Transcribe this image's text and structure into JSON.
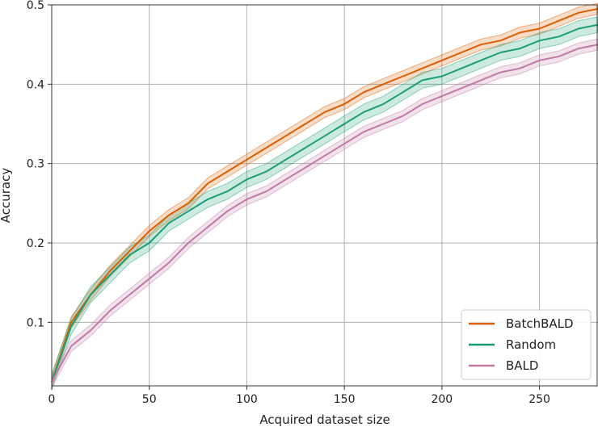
{
  "chart_data": {
    "type": "line",
    "title": "",
    "xlabel": "Acquired dataset size",
    "ylabel": "Accuracy",
    "xlim": [
      0,
      280
    ],
    "ylim": [
      0.02,
      0.5
    ],
    "xticks": [
      0,
      50,
      100,
      150,
      200,
      250
    ],
    "yticks": [
      0.1,
      0.2,
      0.3,
      0.4,
      0.5
    ],
    "xtick_labels": [
      "0",
      "50",
      "100",
      "150",
      "200",
      "250"
    ],
    "ytick_labels": [
      "0.1",
      "0.2",
      "0.3",
      "0.4",
      "0.5"
    ],
    "grid": true,
    "legend": "lower-right",
    "x": [
      0,
      10,
      20,
      30,
      40,
      50,
      60,
      70,
      80,
      90,
      100,
      110,
      120,
      130,
      140,
      150,
      160,
      170,
      180,
      190,
      200,
      210,
      220,
      230,
      240,
      250,
      260,
      270,
      280
    ],
    "series": [
      {
        "name": "BatchBALD",
        "color": "#d95f02",
        "values": [
          0.025,
          0.1,
          0.135,
          0.165,
          0.19,
          0.215,
          0.235,
          0.25,
          0.275,
          0.29,
          0.305,
          0.32,
          0.335,
          0.35,
          0.365,
          0.375,
          0.39,
          0.4,
          0.41,
          0.42,
          0.43,
          0.44,
          0.45,
          0.455,
          0.465,
          0.47,
          0.48,
          0.49,
          0.495
        ],
        "band": 0.007
      },
      {
        "name": "Random",
        "color": "#1b9e77",
        "values": [
          0.025,
          0.095,
          0.135,
          0.16,
          0.185,
          0.2,
          0.225,
          0.24,
          0.255,
          0.265,
          0.28,
          0.29,
          0.305,
          0.32,
          0.335,
          0.35,
          0.365,
          0.375,
          0.39,
          0.405,
          0.41,
          0.42,
          0.43,
          0.44,
          0.445,
          0.455,
          0.46,
          0.47,
          0.475
        ],
        "band": 0.01
      },
      {
        "name": "BALD",
        "color": "#c07aa6",
        "values": [
          0.025,
          0.07,
          0.09,
          0.115,
          0.135,
          0.155,
          0.175,
          0.2,
          0.22,
          0.24,
          0.255,
          0.265,
          0.28,
          0.295,
          0.31,
          0.325,
          0.34,
          0.35,
          0.36,
          0.375,
          0.385,
          0.395,
          0.405,
          0.415,
          0.42,
          0.43,
          0.435,
          0.445,
          0.45
        ],
        "band": 0.007
      }
    ]
  }
}
